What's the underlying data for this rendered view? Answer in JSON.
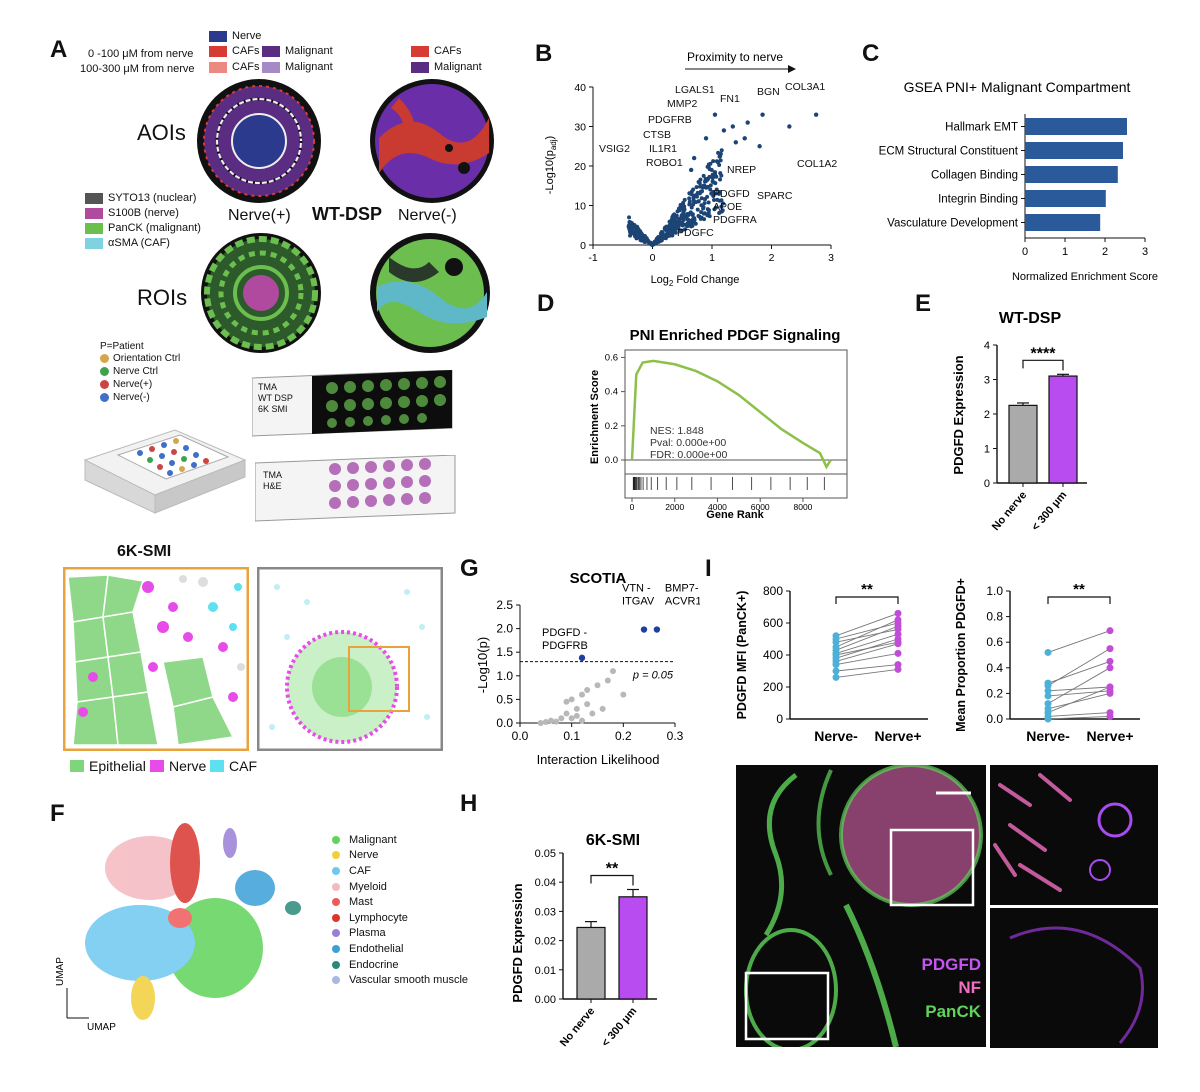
{
  "panels": {
    "A": "A",
    "B": "B",
    "C": "C",
    "D": "D",
    "E": "E",
    "F": "F",
    "G": "G",
    "H": "H",
    "I": "I"
  },
  "panelA": {
    "dist1": "0 -100 μM from nerve",
    "dist2": "100-300 μM from nerve",
    "legend_nerve": "Nerve",
    "legend_cafs": "CAFs",
    "legend_malignant": "Malignant",
    "right_cafs": "CAFs",
    "right_malignant": "Malignant",
    "aois": "AOIs",
    "rois": "ROIs",
    "nerve_pos": "Nerve(+)",
    "nerve_neg": "Nerve(-)",
    "wt_dsp": "WT-DSP",
    "stains": [
      "SYTO13 (nuclear)",
      "S100B (nerve)",
      "PanCK (malignant)",
      "αSMA (CAF)"
    ],
    "stain_colors": [
      "#555555",
      "#b04a9e",
      "#6cbf4f",
      "#7fd3e0"
    ],
    "patient_title": "P=Patient",
    "patient_items": [
      "Orientation Ctrl",
      "Nerve Ctrl",
      "Nerve(+)",
      "Nerve(-)"
    ],
    "patient_colors": [
      "#d4a84a",
      "#3fa34d",
      "#cc4444",
      "#3f6fc6"
    ],
    "slide1": "TMA\nWT DSP\n6K SMI",
    "slide2": "TMA\nH&E",
    "smi_title": "6K-SMI",
    "smi_legend": [
      "Epithelial",
      "Nerve",
      "CAF"
    ],
    "smi_colors": [
      "#7ed67a",
      "#e84ce8",
      "#5fe0f0"
    ]
  },
  "panelB": {
    "arrow_label": "Proximity to nerve",
    "ylabel": "-Log10(p",
    "ylabel_sub": "adj",
    "ylabel_end": ")",
    "xlabel": "Log",
    "xlabel_sub": "2",
    "xlabel_end": " Fold Change",
    "xticks": [
      "-1",
      "0",
      "1",
      "2",
      "3"
    ],
    "yticks": [
      "0",
      "10",
      "20",
      "30",
      "40"
    ],
    "genes": [
      "LGALS1",
      "MMP2",
      "PDGFRB",
      "CTSB",
      "IL1R1",
      "ROBO1",
      "VSIG2",
      "FN1",
      "BGN",
      "COL3A1",
      "COL1A2",
      "NREP",
      "SPARC",
      "PDGFD",
      "APOE",
      "PDGFRA",
      "PDGFC"
    ]
  },
  "chart_data": [
    {
      "id": "C",
      "type": "bar",
      "orientation": "horizontal",
      "title": "GSEA PNI+ Malignant Compartment",
      "categories": [
        "Hallmark EMT",
        "ECM Structural Constituent",
        "Collagen Binding",
        "Integrin Binding",
        "Vasculature Development"
      ],
      "values": [
        2.55,
        2.45,
        2.32,
        2.02,
        1.88
      ],
      "xlabel": "Normalized Enrichment Score",
      "xlim": [
        0,
        3
      ],
      "xticks": [
        "0",
        "1",
        "2",
        "3"
      ],
      "color": "#2a5a9a"
    },
    {
      "id": "D",
      "type": "line",
      "title": "PNI Enriched PDGF Signaling",
      "ylabel": "Enrichment Score",
      "xlabel": "Gene Rank",
      "x": [
        0,
        200,
        500,
        1000,
        2000,
        3000,
        4000,
        5000,
        6000,
        7000,
        8000,
        8800,
        9100,
        9300
      ],
      "y": [
        0.0,
        0.5,
        0.57,
        0.58,
        0.56,
        0.52,
        0.46,
        0.38,
        0.28,
        0.18,
        0.1,
        0.04,
        -0.04,
        0.0
      ],
      "xticks": [
        "0",
        "2000",
        "4000",
        "6000",
        "8000"
      ],
      "yticks": [
        "0.0",
        "0.2",
        "0.4",
        "0.6"
      ],
      "stats": [
        "NES: 1.848",
        "Pval: 0.000e+00",
        "FDR: 0.000e+00"
      ],
      "color": "#8dc04a"
    },
    {
      "id": "E",
      "type": "bar",
      "title": "WT-DSP",
      "ylabel": "PDGFD Expression",
      "categories": [
        "No nerve",
        "< 300 μm"
      ],
      "values": [
        2.25,
        3.1
      ],
      "errors": [
        0.07,
        0.05
      ],
      "ylim": [
        0,
        4
      ],
      "yticks": [
        "0",
        "1",
        "2",
        "3",
        "4"
      ],
      "significance": "****",
      "colors": [
        "#aaaaaa",
        "#b94cf0"
      ]
    },
    {
      "id": "G",
      "type": "scatter",
      "title": "SCOTIA",
      "xlabel": "Interaction Likelihood",
      "ylabel": "-Log10(p)",
      "xlim": [
        0,
        0.3
      ],
      "ylim": [
        0,
        2.5
      ],
      "xticks": [
        "0.0",
        "0.1",
        "0.2",
        "0.3"
      ],
      "yticks": [
        "0.0",
        "0.5",
        "1.0",
        "1.5",
        "2.0",
        "2.5"
      ],
      "threshold_label": "p = 0.05",
      "threshold": 1.3,
      "points_x": [
        0.04,
        0.05,
        0.06,
        0.07,
        0.08,
        0.09,
        0.1,
        0.1,
        0.11,
        0.12,
        0.12,
        0.13,
        0.14,
        0.15,
        0.16,
        0.17,
        0.18,
        0.2,
        0.11,
        0.09,
        0.13
      ],
      "points_y": [
        0.0,
        0.02,
        0.05,
        0.03,
        0.1,
        0.2,
        0.5,
        0.1,
        0.3,
        0.6,
        0.05,
        0.4,
        0.2,
        0.8,
        0.3,
        0.9,
        1.1,
        0.6,
        0.15,
        0.45,
        0.7
      ],
      "highlight": [
        {
          "label": "PDGFD -\nPDGFRB",
          "x": 0.12,
          "y": 1.38
        },
        {
          "label": "VTN -\nITGAV",
          "x": 0.24,
          "y": 1.98
        },
        {
          "label": "BMP7-\nACVR1",
          "x": 0.265,
          "y": 1.98
        }
      ]
    },
    {
      "id": "H",
      "type": "bar",
      "title": "6K-SMI",
      "ylabel": "PDGFD Expression",
      "categories": [
        "No nerve",
        "< 300 μm"
      ],
      "values": [
        0.0245,
        0.035
      ],
      "errors": [
        0.002,
        0.0025
      ],
      "ylim": [
        0,
        0.05
      ],
      "yticks": [
        "0.00",
        "0.01",
        "0.02",
        "0.03",
        "0.04",
        "0.05"
      ],
      "significance": "**",
      "colors": [
        "#aaaaaa",
        "#b94cf0"
      ]
    },
    {
      "id": "I1",
      "type": "paired",
      "ylabel": "PDGFD MFI (PanCK+)",
      "categories": [
        "Nerve-",
        "Nerve+"
      ],
      "ylim": [
        0,
        800
      ],
      "yticks": [
        "0",
        "200",
        "400",
        "600",
        "800"
      ],
      "before": [
        260,
        300,
        340,
        360,
        380,
        400,
        410,
        430,
        450,
        480,
        500,
        520
      ],
      "after": [
        310,
        340,
        410,
        470,
        500,
        480,
        530,
        580,
        620,
        560,
        600,
        660
      ],
      "significance": "**",
      "colors": [
        "#4cb0d8",
        "#c14cd8"
      ]
    },
    {
      "id": "I2",
      "type": "paired",
      "ylabel": "Mean Proportion PDGFD+",
      "categories": [
        "Nerve-",
        "Nerve+"
      ],
      "ylim": [
        0,
        1.0
      ],
      "yticks": [
        "0.0",
        "0.2",
        "0.4",
        "0.6",
        "0.8",
        "1.0"
      ],
      "before": [
        0.0,
        0.02,
        0.05,
        0.08,
        0.12,
        0.18,
        0.22,
        0.26,
        0.28,
        0.52
      ],
      "after": [
        0.02,
        0.05,
        0.25,
        0.2,
        0.4,
        0.22,
        0.25,
        0.55,
        0.45,
        0.69
      ],
      "significance": "**",
      "colors": [
        "#4cb0d8",
        "#c14cd8"
      ]
    }
  ],
  "panelF": {
    "legend": [
      "Malignant",
      "Nerve",
      "CAF",
      "Myeloid",
      "Mast",
      "Lymphocyte",
      "Plasma",
      "Endothelial",
      "Endocrine",
      "Vascular smooth muscle"
    ],
    "colors": [
      "#5fd35a",
      "#f2cf3a",
      "#6ec8f0",
      "#f4b8c0",
      "#f05a5a",
      "#d9362e",
      "#9b7fd6",
      "#3aa0d8",
      "#2a8a7a",
      "#a8b8e0"
    ],
    "umap_y": "UMAP",
    "umap_x": "UMAP"
  },
  "panelI": {
    "stains": [
      "PDGFD",
      "NF",
      "PanCK"
    ],
    "stain_colors": [
      "#c455f0",
      "#f06fc0",
      "#5fd35a"
    ]
  }
}
